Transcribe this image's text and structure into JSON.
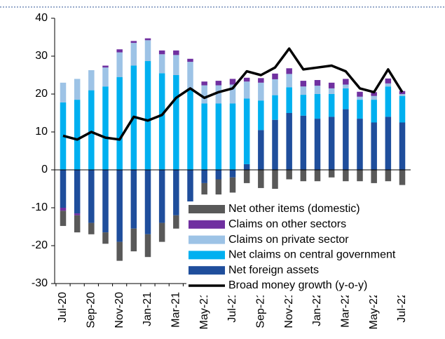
{
  "chart_data": {
    "type": "bar",
    "stacked": true,
    "categories": [
      "Jul-20",
      null,
      "Sep-20",
      null,
      "Nov-20",
      null,
      "Jan-21",
      null,
      "Mar-21",
      null,
      "May-21",
      null,
      "Jul-21",
      null,
      "Sep-21",
      null,
      "Nov-21",
      null,
      "Jan-22",
      null,
      "Mar-22",
      null,
      "May-22",
      null,
      "Jul-22"
    ],
    "series": [
      {
        "name": "Net foreign assets",
        "color": "#1f4e9c",
        "values": [
          -10,
          -11.5,
          -14,
          -16.5,
          -19,
          -15.5,
          -17,
          -14,
          -12,
          -8.5,
          -3.5,
          -2.5,
          -2,
          1.5,
          10.5,
          13.2,
          15,
          14.3,
          13.5,
          14,
          16,
          13.5,
          12.5,
          14,
          12.5
        ]
      },
      {
        "name": "Net claims on central government",
        "color": "#00b0f0",
        "values": [
          17.8,
          18.5,
          21,
          22,
          24.5,
          27.5,
          28.7,
          25.5,
          25,
          21.5,
          17.5,
          17.5,
          17.5,
          17.3,
          7.8,
          6.5,
          6.8,
          5.5,
          6.5,
          6,
          5.5,
          5,
          6,
          8,
          7
        ]
      },
      {
        "name": "Claims on private sector",
        "color": "#9dc3e6",
        "values": [
          5.2,
          5.5,
          5.3,
          5,
          6.5,
          6,
          5.5,
          5,
          5.3,
          7,
          4.8,
          4.8,
          5,
          4.5,
          4.7,
          4.2,
          3.5,
          2.2,
          2.2,
          1.5,
          1,
          0.8,
          1,
          0.8,
          0.5
        ]
      },
      {
        "name": "Claims on other sectors",
        "color": "#7030a0",
        "values": [
          -0.8,
          -0.5,
          0,
          0.5,
          0.8,
          0.5,
          0.5,
          1,
          1.2,
          0.8,
          1,
          1.2,
          1.5,
          1,
          1.2,
          1.5,
          1.5,
          1.5,
          1.5,
          1.5,
          1.5,
          1.3,
          1,
          1.3,
          0.8
        ]
      },
      {
        "name": "Net other items (domestic)",
        "color": "#595959",
        "values": [
          -4,
          -4.5,
          -3,
          -3,
          -5,
          -6,
          -6,
          -5,
          -3.5,
          -4,
          -3,
          -4,
          -4,
          -3.5,
          -4.8,
          -5,
          -2.5,
          -3,
          -3,
          -2,
          -3,
          -3,
          -3.5,
          -3,
          -4
        ]
      },
      {
        "name": "Broad money growth (y-o-y)",
        "color": "#000000",
        "type": "line",
        "values": [
          9,
          8,
          10,
          8.5,
          8,
          14,
          13,
          14.5,
          19,
          21.5,
          19,
          20.5,
          21.5,
          26,
          25,
          27,
          32,
          26.5,
          27,
          27.5,
          26,
          21.5,
          20.5,
          26.5,
          20.5
        ]
      }
    ],
    "ylim": [
      -30,
      40
    ],
    "yticks": [
      -30,
      -20,
      -10,
      0,
      10,
      20,
      30,
      40
    ],
    "legend": "lower right"
  }
}
